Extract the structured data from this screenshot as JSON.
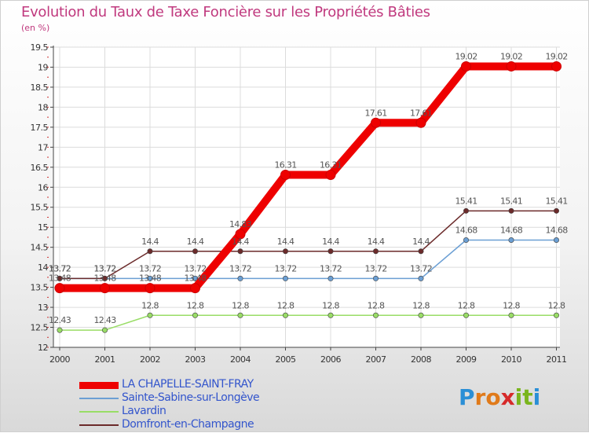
{
  "chart_data": {
    "type": "line",
    "title": "Evolution du Taux de Taxe Foncière sur les Propriétés Bâties",
    "ylabel": "(en %)",
    "xlabel": "",
    "categories": [
      "2000",
      "2001",
      "2002",
      "2003",
      "2004",
      "2005",
      "2006",
      "2007",
      "2008",
      "2009",
      "2010",
      "2011"
    ],
    "ylim": [
      12,
      19.5
    ],
    "yticks": [
      "12",
      "12.5",
      "13",
      "13.5",
      "14",
      "14.5",
      "15",
      "15.5",
      "16",
      "16.5",
      "17",
      "17.5",
      "18",
      "18.5",
      "19",
      "19.5"
    ],
    "series": [
      {
        "name": "LA CHAPELLE-SAINT-FRAY",
        "color": "#ee0000",
        "values": [
          13.48,
          13.48,
          13.48,
          13.48,
          14.83,
          16.31,
          16.31,
          17.61,
          17.61,
          19.02,
          19.02,
          19.02
        ],
        "labels": [
          "13.48",
          "13.48",
          "13.48",
          "13.48",
          "14.83",
          "16.31",
          "16.31",
          "17.61",
          "17.61",
          "19.02",
          "19.02",
          "19.02"
        ]
      },
      {
        "name": "Sainte-Sabine-sur-Longève",
        "color": "#6b9fd4",
        "values": [
          13.72,
          13.72,
          13.72,
          13.72,
          13.72,
          13.72,
          13.72,
          13.72,
          13.72,
          14.68,
          14.68,
          14.68
        ],
        "labels": [
          "13.72",
          "13.72",
          "13.72",
          "13.72",
          "13.72",
          "13.72",
          "13.72",
          "13.72",
          "13.72",
          "14.68",
          "14.68",
          "14.68"
        ]
      },
      {
        "name": "Lavardin",
        "color": "#99dd66",
        "values": [
          12.43,
          12.43,
          12.8,
          12.8,
          12.8,
          12.8,
          12.8,
          12.8,
          12.8,
          12.8,
          12.8,
          12.8
        ],
        "labels": [
          "12.43",
          "12.43",
          "12.8",
          "12.8",
          "12.8",
          "12.8",
          "12.8",
          "12.8",
          "12.8",
          "12.8",
          "12.8",
          "12.8"
        ]
      },
      {
        "name": "Domfront-en-Champagne",
        "color": "#6b2a2a",
        "values": [
          13.72,
          13.72,
          14.4,
          14.4,
          14.4,
          14.4,
          14.4,
          14.4,
          14.4,
          15.41,
          15.41,
          15.41
        ],
        "labels": [
          "13.72",
          "13.72",
          "14.4",
          "14.4",
          "14.4",
          "14.4",
          "14.4",
          "14.4",
          "14.4",
          "15.41",
          "15.41",
          "15.41"
        ]
      }
    ]
  },
  "logo": {
    "letters": [
      "P",
      "r",
      "o",
      "x",
      "i",
      "t",
      "i"
    ],
    "colors": [
      "#2a8fd6",
      "#e07a1a",
      "#e07a1a",
      "#d62a2a",
      "#7ab51d",
      "#7ab51d",
      "#2a8fd6"
    ]
  }
}
